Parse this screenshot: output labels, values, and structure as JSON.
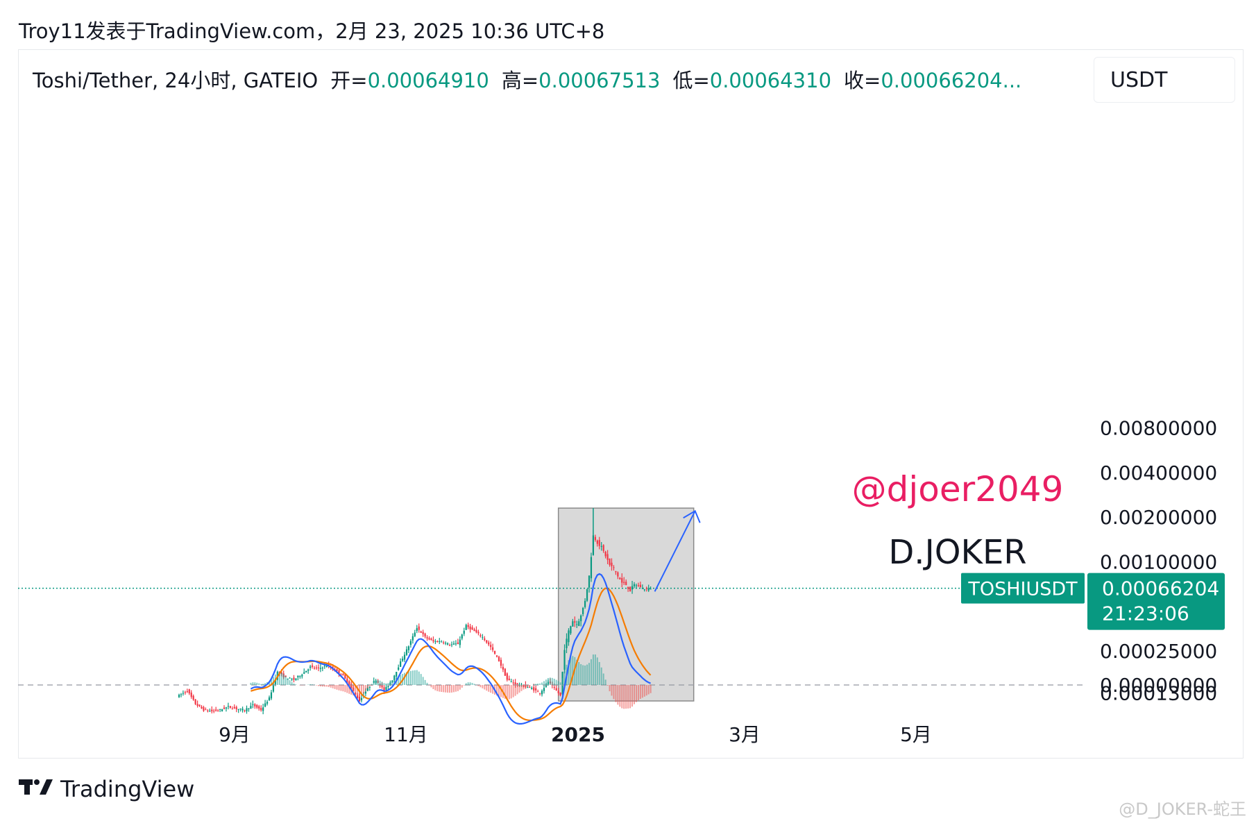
{
  "header": {
    "text": "Troy11发表于TradingView.com，2月 23, 2025 10:36 UTC+8"
  },
  "legend": {
    "symbol": "Toshi/Tether, 24小时, GATEIO",
    "open_label": "开=",
    "open": "0.00064910",
    "high_label": "高=",
    "high": "0.00067513",
    "low_label": "低=",
    "low": "0.00064310",
    "close_label": "收=",
    "close": "0.00066204..."
  },
  "unit": "USDT",
  "price_tag": {
    "symbol": "TOSHIUSDT",
    "price": "0.00066204",
    "countdown": "21:23:06"
  },
  "annotations": {
    "handle": "@djoer2049",
    "name": "D.JOKER"
  },
  "footer": {
    "brand": "TradingView",
    "logo": "TV-logo-icon",
    "corner_watermark": "@D_JOKER-蛇王"
  },
  "colors": {
    "up": "#089981",
    "down": "#f23645",
    "macd": "#2962ff",
    "signal": "#f57c00",
    "handle": "#e91e63",
    "box_fill": "#d9d9d9",
    "arrow": "#2962ff"
  },
  "chart_data": {
    "type": "candlestick",
    "scale": "log",
    "y_ticks": [
      {
        "label": "0.00800000",
        "value": 0.008
      },
      {
        "label": "0.00400000",
        "value": 0.004
      },
      {
        "label": "0.00200000",
        "value": 0.002
      },
      {
        "label": "0.00100000",
        "value": 0.001
      },
      {
        "label": "0.00025000",
        "value": 0.00025
      },
      {
        "label": "0.00013000",
        "value": 0.00013
      },
      {
        "label": "0.00000000",
        "value": 0
      }
    ],
    "x_ticks": [
      {
        "label": "9月",
        "bold": false
      },
      {
        "label": "11月",
        "bold": false
      },
      {
        "label": "2025",
        "bold": true
      },
      {
        "label": "3月",
        "bold": false
      },
      {
        "label": "5月",
        "bold": false
      }
    ],
    "current_price": 0.00066204,
    "price_path_key": [
      [
        0,
        0.000125
      ],
      [
        4,
        0.000135
      ],
      [
        8,
        0.00011
      ],
      [
        12,
        0.0001
      ],
      [
        16,
        9.8e-05
      ],
      [
        20,
        0.0001
      ],
      [
        24,
        0.000105
      ],
      [
        28,
        0.000102
      ],
      [
        32,
        0.0001
      ],
      [
        36,
        0.000108
      ],
      [
        40,
        0.0001
      ],
      [
        44,
        0.00012
      ],
      [
        48,
        0.00018
      ],
      [
        52,
        0.000165
      ],
      [
        56,
        0.00016
      ],
      [
        60,
        0.000175
      ],
      [
        64,
        0.000195
      ],
      [
        68,
        0.00019
      ],
      [
        72,
        0.0002
      ],
      [
        76,
        0.000185
      ],
      [
        80,
        0.00017
      ],
      [
        84,
        0.00014
      ],
      [
        88,
        0.000115
      ],
      [
        92,
        0.00014
      ],
      [
        96,
        0.00016
      ],
      [
        100,
        0.000135
      ],
      [
        104,
        0.00016
      ],
      [
        108,
        0.00021
      ],
      [
        112,
        0.00027
      ],
      [
        116,
        0.00036
      ],
      [
        120,
        0.00031
      ],
      [
        124,
        0.00029
      ],
      [
        128,
        0.00029
      ],
      [
        132,
        0.000275
      ],
      [
        136,
        0.00028
      ],
      [
        140,
        0.00037
      ],
      [
        144,
        0.00034
      ],
      [
        148,
        0.00031
      ],
      [
        152,
        0.000265
      ],
      [
        156,
        0.000215
      ],
      [
        160,
        0.00016
      ],
      [
        164,
        0.00015
      ],
      [
        168,
        0.000145
      ],
      [
        172,
        0.00014
      ],
      [
        176,
        0.00013
      ],
      [
        180,
        0.000155
      ],
      [
        184,
        0.000135
      ],
      [
        186,
        0.000125
      ],
      [
        188,
        0.00026
      ],
      [
        190,
        0.00034
      ],
      [
        192,
        0.0004
      ],
      [
        194,
        0.00038
      ],
      [
        196,
        0.00043
      ],
      [
        198,
        0.00055
      ],
      [
        200,
        0.0008
      ],
      [
        202,
        0.0015
      ],
      [
        204,
        0.00135
      ],
      [
        206,
        0.00125
      ],
      [
        208,
        0.0011
      ],
      [
        210,
        0.00095
      ],
      [
        212,
        0.0009
      ],
      [
        214,
        0.0008
      ],
      [
        216,
        0.00072
      ],
      [
        218,
        0.0007
      ],
      [
        220,
        0.00064
      ],
      [
        222,
        0.0007
      ],
      [
        224,
        0.00069
      ],
      [
        226,
        0.00066
      ],
      [
        228,
        0.000655
      ],
      [
        230,
        0.000662
      ]
    ],
    "annotation_box": {
      "x_from": 185,
      "x_to": 251,
      "y_from": 0.000115,
      "y_to": 0.0023
    },
    "projection_arrow": {
      "x_from": 232,
      "y_from": 0.00063,
      "x_to": 251,
      "y_to": 0.0022
    },
    "indicator": {
      "name": "MACD",
      "macd": "blue line",
      "signal": "orange line",
      "zero_line": 0
    }
  }
}
